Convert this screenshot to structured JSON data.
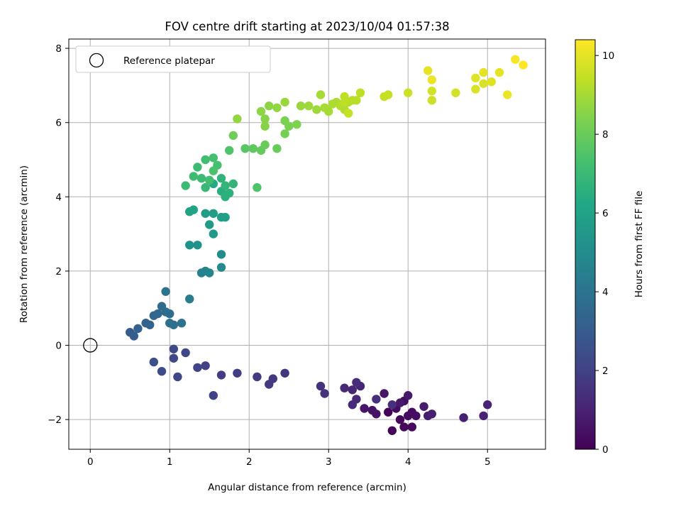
{
  "chart_data": {
    "type": "scatter",
    "title": "FOV centre drift starting at 2023/10/04 01:57:38",
    "xlabel": "Angular distance from reference (arcmin)",
    "ylabel": "Rotation from reference (arcmin)",
    "xlim": [
      -0.27,
      5.73
    ],
    "ylim": [
      -2.8,
      8.25
    ],
    "xticks": [
      0,
      1,
      2,
      3,
      4,
      5
    ],
    "yticks": [
      -2,
      0,
      2,
      4,
      6,
      8
    ],
    "grid": true,
    "legend": {
      "placement": "top-left",
      "entries": [
        "Reference platepar"
      ]
    },
    "reference_point": {
      "x": 0,
      "y": 0,
      "marker": "open-circle"
    },
    "colorbar": {
      "label": "Hours from first FF file",
      "range": [
        0,
        10.4
      ],
      "ticks": [
        0,
        2,
        4,
        6,
        8,
        10
      ],
      "colormap": "viridis"
    },
    "series": [
      {
        "points": [
          [
            3.75,
            -1.8,
            0.1
          ],
          [
            3.8,
            -2.3,
            0.1
          ],
          [
            3.95,
            -2.2,
            0.2
          ],
          [
            4.05,
            -2.2,
            0.2
          ],
          [
            3.9,
            -2.0,
            0.2
          ],
          [
            4.0,
            -1.9,
            0.3
          ],
          [
            3.85,
            -1.7,
            0.3
          ],
          [
            4.05,
            -1.8,
            0.3
          ],
          [
            3.95,
            -1.5,
            0.4
          ],
          [
            4.1,
            -1.9,
            0.4
          ],
          [
            3.6,
            -1.85,
            0.5
          ],
          [
            3.55,
            -1.75,
            0.5
          ],
          [
            3.45,
            -1.7,
            0.6
          ],
          [
            3.7,
            -1.3,
            0.6
          ],
          [
            3.9,
            -1.55,
            0.7
          ],
          [
            4.0,
            -1.35,
            0.7
          ],
          [
            4.2,
            -1.65,
            0.8
          ],
          [
            4.25,
            -1.9,
            0.8
          ],
          [
            4.3,
            -1.85,
            0.9
          ],
          [
            4.7,
            -1.95,
            0.9
          ],
          [
            4.95,
            -1.9,
            1.0
          ],
          [
            5.0,
            -1.6,
            1.0
          ],
          [
            3.4,
            -1.1,
            1.1
          ],
          [
            3.3,
            -1.2,
            1.1
          ],
          [
            3.2,
            -1.15,
            1.2
          ],
          [
            3.35,
            -1.45,
            1.2
          ],
          [
            3.3,
            -1.6,
            1.3
          ],
          [
            3.35,
            -1.0,
            1.3
          ],
          [
            3.6,
            -1.45,
            1.4
          ],
          [
            3.8,
            -1.6,
            1.4
          ],
          [
            2.9,
            -1.1,
            1.5
          ],
          [
            2.95,
            -1.3,
            1.5
          ],
          [
            2.45,
            -0.75,
            1.6
          ],
          [
            2.3,
            -0.9,
            1.7
          ],
          [
            2.25,
            -1.05,
            1.7
          ],
          [
            2.1,
            -0.85,
            1.8
          ],
          [
            1.85,
            -0.75,
            1.9
          ],
          [
            1.65,
            -0.8,
            1.9
          ],
          [
            1.55,
            -1.35,
            2.0
          ],
          [
            1.45,
            -0.55,
            2.0
          ],
          [
            1.35,
            -0.6,
            2.1
          ],
          [
            1.2,
            -0.2,
            2.2
          ],
          [
            1.1,
            -0.85,
            2.2
          ],
          [
            1.05,
            -0.35,
            2.3
          ],
          [
            1.05,
            -0.1,
            2.3
          ],
          [
            0.9,
            -0.7,
            2.4
          ],
          [
            0.8,
            -0.45,
            2.5
          ],
          [
            0.5,
            0.35,
            3.0
          ],
          [
            0.55,
            0.25,
            3.1
          ],
          [
            0.6,
            0.45,
            3.2
          ],
          [
            0.7,
            0.6,
            3.3
          ],
          [
            0.75,
            0.55,
            3.3
          ],
          [
            0.8,
            0.8,
            3.4
          ],
          [
            0.85,
            0.85,
            3.5
          ],
          [
            0.9,
            1.05,
            3.6
          ],
          [
            0.95,
            0.9,
            3.7
          ],
          [
            1.0,
            0.85,
            3.7
          ],
          [
            1.0,
            0.6,
            3.8
          ],
          [
            1.05,
            0.55,
            3.8
          ],
          [
            1.15,
            0.6,
            3.9
          ],
          [
            0.95,
            1.45,
            4.0
          ],
          [
            1.25,
            1.25,
            4.3
          ],
          [
            1.4,
            1.95,
            4.5
          ],
          [
            1.45,
            2.0,
            4.6
          ],
          [
            1.5,
            1.95,
            4.7
          ],
          [
            1.65,
            2.1,
            4.9
          ],
          [
            1.65,
            2.45,
            5.0
          ],
          [
            1.25,
            2.7,
            5.2
          ],
          [
            1.35,
            2.7,
            5.3
          ],
          [
            1.55,
            3.0,
            5.5
          ],
          [
            1.5,
            3.25,
            5.6
          ],
          [
            1.45,
            3.55,
            5.7
          ],
          [
            1.55,
            3.55,
            5.8
          ],
          [
            1.65,
            3.45,
            5.9
          ],
          [
            1.7,
            3.45,
            5.9
          ],
          [
            1.25,
            3.6,
            6.0
          ],
          [
            1.3,
            3.65,
            6.0
          ],
          [
            1.55,
            4.35,
            6.3
          ],
          [
            1.65,
            4.15,
            6.5
          ],
          [
            1.7,
            4.0,
            6.6
          ],
          [
            1.75,
            4.1,
            6.6
          ],
          [
            1.65,
            4.5,
            6.7
          ],
          [
            1.7,
            4.3,
            6.8
          ],
          [
            1.8,
            4.35,
            6.8
          ],
          [
            1.45,
            4.25,
            6.9
          ],
          [
            1.4,
            4.5,
            7.0
          ],
          [
            1.2,
            4.3,
            7.0
          ],
          [
            1.3,
            4.55,
            7.1
          ],
          [
            1.35,
            4.8,
            7.1
          ],
          [
            1.5,
            4.45,
            7.2
          ],
          [
            1.45,
            5.0,
            7.2
          ],
          [
            1.55,
            5.05,
            7.3
          ],
          [
            1.6,
            4.85,
            7.3
          ],
          [
            1.55,
            4.7,
            7.4
          ],
          [
            1.75,
            5.25,
            7.5
          ],
          [
            2.1,
            4.25,
            7.5
          ],
          [
            1.95,
            5.3,
            7.7
          ],
          [
            2.05,
            5.3,
            7.8
          ],
          [
            2.15,
            5.25,
            7.9
          ],
          [
            2.2,
            5.4,
            8.0
          ],
          [
            2.35,
            5.3,
            8.0
          ],
          [
            1.8,
            5.65,
            8.1
          ],
          [
            2.45,
            5.7,
            8.2
          ],
          [
            2.5,
            5.9,
            8.3
          ],
          [
            2.45,
            6.05,
            8.3
          ],
          [
            2.6,
            5.95,
            8.4
          ],
          [
            2.2,
            6.1,
            8.5
          ],
          [
            2.2,
            5.9,
            8.5
          ],
          [
            2.15,
            6.3,
            8.6
          ],
          [
            2.25,
            6.45,
            8.6
          ],
          [
            2.35,
            6.4,
            8.7
          ],
          [
            1.85,
            6.1,
            8.7
          ],
          [
            2.45,
            6.55,
            8.8
          ],
          [
            2.65,
            6.45,
            8.8
          ],
          [
            2.75,
            6.45,
            8.9
          ],
          [
            2.85,
            6.35,
            8.9
          ],
          [
            2.9,
            6.75,
            9.0
          ],
          [
            2.95,
            6.4,
            9.0
          ],
          [
            3.0,
            6.3,
            9.0
          ],
          [
            3.05,
            6.5,
            9.1
          ],
          [
            3.1,
            6.55,
            9.1
          ],
          [
            3.15,
            6.45,
            9.2
          ],
          [
            3.2,
            6.35,
            9.2
          ],
          [
            3.25,
            6.55,
            9.2
          ],
          [
            3.3,
            6.6,
            9.3
          ],
          [
            3.35,
            6.6,
            9.3
          ],
          [
            3.4,
            6.8,
            9.4
          ],
          [
            3.2,
            6.7,
            9.4
          ],
          [
            3.2,
            6.55,
            9.4
          ],
          [
            3.25,
            6.25,
            9.5
          ],
          [
            3.7,
            6.7,
            9.5
          ],
          [
            3.75,
            6.75,
            9.5
          ],
          [
            4.0,
            6.8,
            9.6
          ],
          [
            4.3,
            6.6,
            9.6
          ],
          [
            4.3,
            6.85,
            9.7
          ],
          [
            4.6,
            6.8,
            9.7
          ],
          [
            4.85,
            6.9,
            9.8
          ],
          [
            4.95,
            7.05,
            9.8
          ],
          [
            5.05,
            7.1,
            9.9
          ],
          [
            4.85,
            7.2,
            9.9
          ],
          [
            4.95,
            7.35,
            10.0
          ],
          [
            5.15,
            7.35,
            10.0
          ],
          [
            4.25,
            7.4,
            10.0
          ],
          [
            4.3,
            7.15,
            10.1
          ],
          [
            5.25,
            6.75,
            10.1
          ],
          [
            5.35,
            7.7,
            10.3
          ],
          [
            5.45,
            7.55,
            10.4
          ]
        ]
      }
    ]
  }
}
